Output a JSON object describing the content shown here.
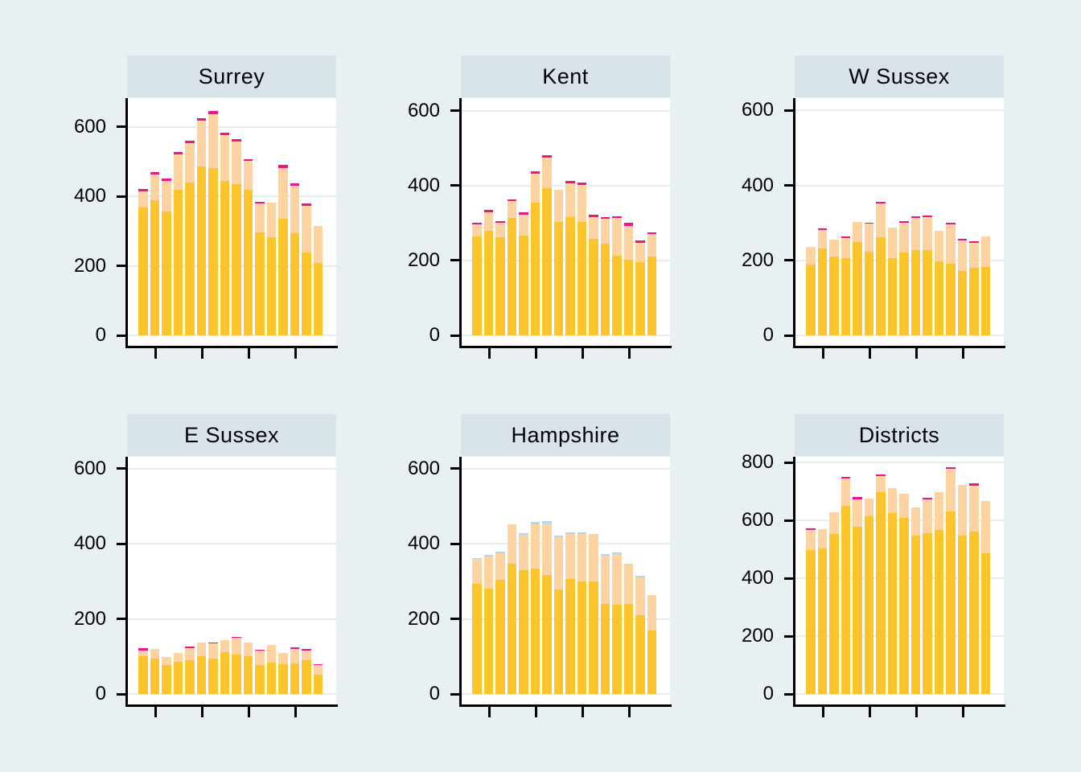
{
  "colors": {
    "background": "#e8f0f3",
    "panel_header_band": "#d8e4ea",
    "plot_background": "#ffffff",
    "gridline": "#e4edf0",
    "axis": "#000000",
    "text": "#000000",
    "series_gold": "#fdc42b",
    "series_peach": "#fdd3a1",
    "series_lightblue": "#add8f0",
    "series_magenta": "#ed148c"
  },
  "chart_data": [
    {
      "type": "bar",
      "stacked": true,
      "title": "Surrey",
      "n_bars": 16,
      "yticks": [
        0,
        200,
        400,
        600
      ],
      "ylim": [
        0,
        683
      ],
      "x_axis": {
        "labels_visible": false,
        "tick_bar_positions": [
          2,
          6,
          10,
          14
        ]
      },
      "grid": true,
      "legend": "none",
      "series": [
        {
          "name": "gold",
          "color": "#fdc42b",
          "values": [
            369,
            390,
            356,
            420,
            439,
            487,
            481,
            445,
            436,
            420,
            297,
            283,
            335,
            294,
            239,
            209
          ]
        },
        {
          "name": "peach",
          "color": "#fdd3a1",
          "values": [
            46,
            73,
            89,
            102,
            115,
            132,
            156,
            131,
            123,
            82,
            82,
            98,
            147,
            136,
            134,
            106
          ]
        },
        {
          "name": "magenta",
          "color": "#ed148c",
          "values": [
            6,
            7,
            7,
            6,
            6,
            7,
            8,
            7,
            6,
            6,
            6,
            0,
            8,
            7,
            6,
            0
          ]
        }
      ],
      "totals": [
        421,
        470,
        452,
        528,
        560,
        626,
        645,
        583,
        565,
        508,
        385,
        381,
        490,
        437,
        379,
        315
      ]
    },
    {
      "type": "bar",
      "stacked": true,
      "title": "Kent",
      "n_bars": 16,
      "yticks": [
        0,
        200,
        400,
        600
      ],
      "ylim": [
        0,
        634
      ],
      "x_axis": {
        "labels_visible": false,
        "tick_bar_positions": [
          2,
          6,
          10,
          14
        ]
      },
      "grid": true,
      "legend": "none",
      "series": [
        {
          "name": "gold",
          "color": "#fdc42b",
          "values": [
            264,
            280,
            262,
            313,
            266,
            354,
            394,
            304,
            315,
            304,
            257,
            245,
            213,
            201,
            196,
            211
          ]
        },
        {
          "name": "peach",
          "color": "#fdd3a1",
          "values": [
            32,
            49,
            38,
            45,
            57,
            77,
            80,
            84,
            91,
            98,
            60,
            66,
            100,
            92,
            51,
            60
          ]
        },
        {
          "name": "magenta",
          "color": "#ed148c",
          "values": [
            4,
            6,
            5,
            6,
            5,
            7,
            7,
            0,
            7,
            6,
            5,
            4,
            5,
            9,
            6,
            4
          ]
        }
      ],
      "totals": [
        300,
        335,
        305,
        364,
        328,
        438,
        481,
        388,
        413,
        408,
        322,
        315,
        318,
        302,
        253,
        275
      ]
    },
    {
      "type": "bar",
      "stacked": true,
      "title": "W Sussex",
      "n_bars": 16,
      "yticks": [
        0,
        200,
        400,
        600
      ],
      "ylim": [
        0,
        633
      ],
      "x_axis": {
        "labels_visible": false,
        "tick_bar_positions": [
          2,
          6,
          10,
          14
        ]
      },
      "grid": true,
      "legend": "none",
      "series": [
        {
          "name": "gold",
          "color": "#fdc42b",
          "values": [
            188,
            231,
            210,
            206,
            249,
            224,
            261,
            207,
            221,
            228,
            227,
            197,
            191,
            172,
            181,
            182
          ]
        },
        {
          "name": "peach",
          "color": "#fdd3a1",
          "values": [
            49,
            51,
            46,
            53,
            54,
            74,
            90,
            80,
            80,
            85,
            88,
            82,
            106,
            81,
            66,
            82
          ]
        },
        {
          "name": "magenta",
          "color": "#ed148c",
          "values": [
            0,
            4,
            0,
            4,
            0,
            3,
            5,
            0,
            3,
            4,
            4,
            0,
            4,
            4,
            4,
            0
          ]
        }
      ],
      "totals": [
        237,
        286,
        256,
        263,
        303,
        301,
        356,
        287,
        304,
        317,
        319,
        279,
        301,
        257,
        251,
        264
      ]
    },
    {
      "type": "bar",
      "stacked": true,
      "title": "E Sussex",
      "n_bars": 16,
      "yticks": [
        0,
        200,
        400,
        600
      ],
      "ylim": [
        0,
        632
      ],
      "x_axis": {
        "labels_visible": false,
        "tick_bar_positions": [
          2,
          6,
          10,
          14
        ]
      },
      "grid": true,
      "legend": "none",
      "series": [
        {
          "name": "gold",
          "color": "#fdc42b",
          "values": [
            100,
            94,
            78,
            86,
            89,
            101,
            94,
            111,
            104,
            100,
            77,
            83,
            80,
            81,
            90,
            51
          ]
        },
        {
          "name": "peach",
          "color": "#fdd3a1",
          "values": [
            16,
            27,
            20,
            23,
            33,
            37,
            41,
            33,
            45,
            38,
            38,
            48,
            29,
            40,
            25,
            26
          ]
        },
        {
          "name": "magenta",
          "color": "#ed148c",
          "values": [
            7,
            0,
            0,
            0,
            4,
            0,
            3,
            0,
            4,
            0,
            3,
            0,
            0,
            4,
            4,
            3
          ]
        }
      ],
      "totals": [
        123,
        121,
        98,
        109,
        126,
        138,
        138,
        144,
        153,
        138,
        118,
        131,
        109,
        125,
        119,
        80
      ]
    },
    {
      "type": "bar",
      "stacked": true,
      "title": "Hampshire",
      "n_bars": 16,
      "yticks": [
        0,
        200,
        400,
        600
      ],
      "ylim": [
        0,
        632
      ],
      "x_axis": {
        "labels_visible": false,
        "tick_bar_positions": [
          2,
          6,
          10,
          14
        ]
      },
      "grid": true,
      "legend": "none",
      "series": [
        {
          "name": "gold",
          "color": "#fdc42b",
          "values": [
            293,
            281,
            305,
            347,
            329,
            334,
            318,
            279,
            307,
            301,
            300,
            240,
            238,
            239,
            209,
            170
          ]
        },
        {
          "name": "peach",
          "color": "#fdd3a1",
          "values": [
            66,
            85,
            71,
            106,
            96,
            119,
            137,
            139,
            120,
            126,
            126,
            129,
            135,
            109,
            101,
            94
          ]
        },
        {
          "name": "lightblue",
          "color": "#add8f0",
          "values": [
            4,
            4,
            4,
            0,
            4,
            5,
            5,
            4,
            4,
            4,
            0,
            4,
            5,
            0,
            5,
            0
          ]
        }
      ],
      "totals": [
        363,
        370,
        380,
        453,
        429,
        458,
        460,
        422,
        431,
        431,
        426,
        373,
        378,
        348,
        315,
        264
      ]
    },
    {
      "type": "bar",
      "stacked": true,
      "title": "Districts",
      "n_bars": 16,
      "yticks": [
        0,
        200,
        400,
        600,
        800
      ],
      "ylim": [
        0,
        820
      ],
      "x_axis": {
        "labels_visible": false,
        "tick_bar_positions": [
          2,
          6,
          10,
          14
        ]
      },
      "grid": true,
      "legend": "none",
      "series": [
        {
          "name": "gold",
          "color": "#fdc42b",
          "values": [
            497,
            504,
            554,
            651,
            577,
            614,
            697,
            625,
            608,
            549,
            556,
            566,
            631,
            547,
            562,
            487
          ]
        },
        {
          "name": "peach",
          "color": "#fdd3a1",
          "values": [
            70,
            66,
            74,
            93,
            97,
            61,
            55,
            87,
            83,
            97,
            116,
            133,
            146,
            175,
            159,
            180
          ]
        },
        {
          "name": "magenta",
          "color": "#ed148c",
          "values": [
            5,
            0,
            0,
            6,
            8,
            0,
            6,
            0,
            0,
            0,
            5,
            0,
            6,
            0,
            6,
            0
          ]
        }
      ],
      "totals": [
        572,
        570,
        628,
        750,
        682,
        675,
        758,
        712,
        691,
        646,
        677,
        699,
        783,
        722,
        727,
        667
      ]
    }
  ]
}
